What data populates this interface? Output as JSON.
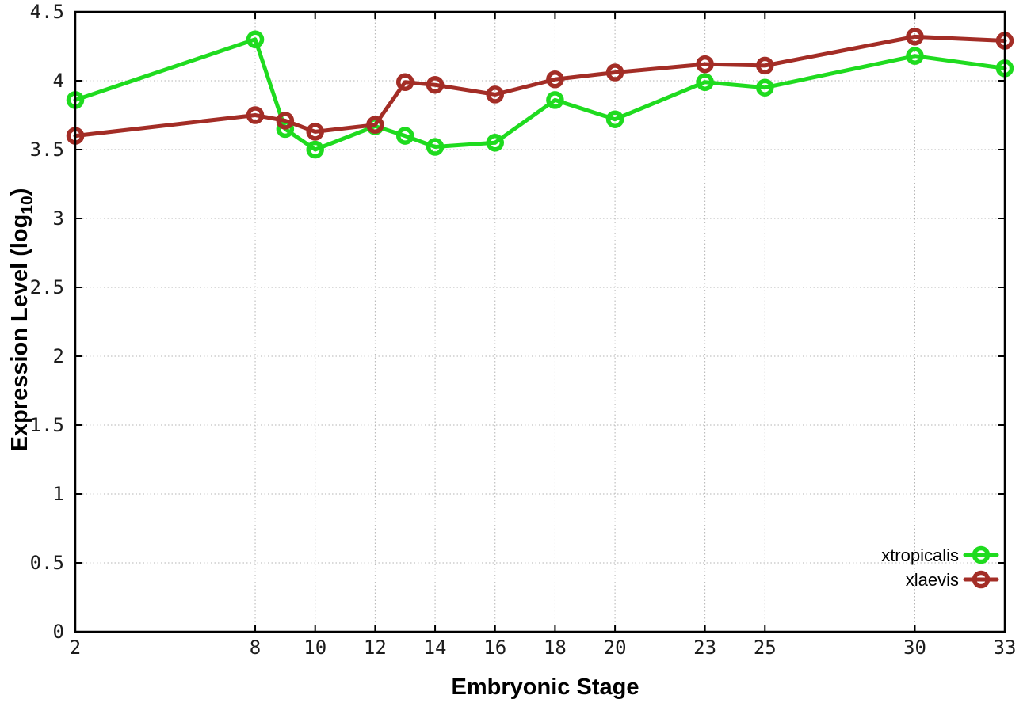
{
  "chart_data": {
    "type": "line",
    "title": "",
    "xlabel": "Embryonic Stage",
    "ylabel": "Expression Level (log10)",
    "ylabel_base": "Expression Level (log",
    "ylabel_subscript": "10",
    "ylabel_suffix": ")",
    "x": [
      2,
      8,
      9,
      10,
      12,
      13,
      14,
      16,
      18,
      20,
      23,
      25,
      30,
      33
    ],
    "series": [
      {
        "name": "xtropicalis",
        "color": "#1fdb1f",
        "values": [
          3.86,
          4.3,
          3.65,
          3.5,
          3.67,
          3.6,
          3.52,
          3.55,
          3.86,
          3.72,
          3.99,
          3.95,
          4.18,
          4.09
        ]
      },
      {
        "name": "xlaevis",
        "color": "#a32d26",
        "values": [
          3.6,
          3.75,
          3.71,
          3.63,
          3.68,
          3.99,
          3.97,
          3.9,
          4.01,
          4.06,
          4.12,
          4.11,
          4.32,
          4.29
        ]
      }
    ],
    "xlim": [
      2,
      33
    ],
    "ylim": [
      0,
      4.5
    ],
    "x_ticks": {
      "values": [
        2,
        8,
        10,
        12,
        14,
        16,
        18,
        20,
        23,
        25,
        30,
        33
      ],
      "labels": [
        "2",
        "8",
        "10",
        "12",
        "14",
        "16",
        "18",
        "20",
        "23",
        "25",
        "30",
        "33"
      ]
    },
    "y_ticks": {
      "values": [
        0,
        0.5,
        1,
        1.5,
        2,
        2.5,
        3,
        3.5,
        4,
        4.5
      ],
      "labels": [
        "0",
        "0.5",
        "1",
        "1.5",
        "2",
        "2.5",
        "3",
        "3.5",
        "4",
        "4.5"
      ]
    },
    "grid": true,
    "legend_position": "bottom-right",
    "legend": [
      "xtropicalis",
      "xlaevis"
    ],
    "background_color": "#ffffff",
    "grid_color": "#b4b4b4",
    "axis_color": "#000000",
    "marker": "open-circle"
  }
}
